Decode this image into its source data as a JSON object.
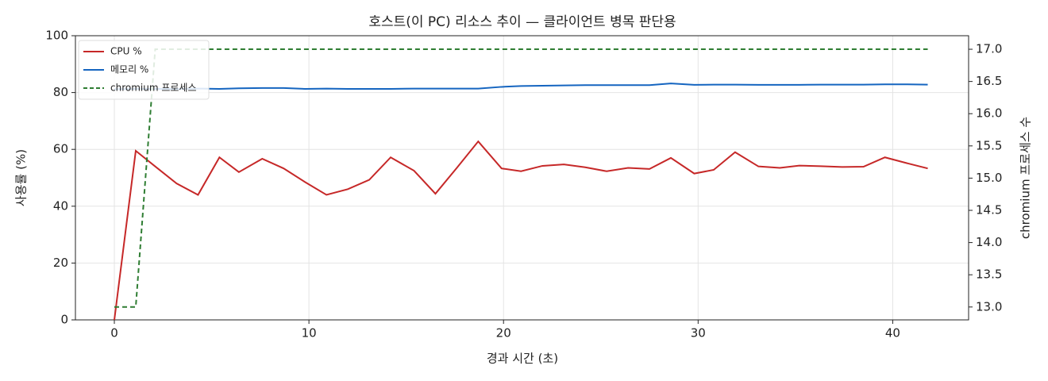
{
  "chart_data": {
    "type": "line",
    "title": "호스트(이 PC) 리소스 추이 — 클라이언트 병목 판단용",
    "xlabel": "경과 시간 (초)",
    "ylabel": "사용률 (%)",
    "y2label": "chromium 프로세스 수",
    "x": [
      0,
      1.1,
      2.1,
      3.2,
      4.3,
      5.4,
      6.4,
      7.6,
      8.7,
      9.8,
      10.9,
      12.0,
      13.1,
      14.2,
      15.4,
      16.5,
      17.6,
      18.7,
      19.9,
      20.9,
      22.0,
      23.1,
      24.2,
      25.3,
      26.4,
      27.5,
      28.6,
      29.8,
      30.8,
      31.9,
      33.1,
      34.2,
      35.2,
      36.3,
      37.4,
      38.5,
      39.6,
      40.7,
      41.8
    ],
    "series": [
      {
        "name": "CPU %",
        "color": "#c62828",
        "axis": "y",
        "linestyle": "solid",
        "values": [
          0,
          59.5,
          54,
          48,
          44,
          57.2,
          52,
          56.7,
          53.3,
          48.5,
          44,
          46,
          49.3,
          57.2,
          52.5,
          44.4,
          53.5,
          62.8,
          53.3,
          52.3,
          54.2,
          54.7,
          53.7,
          52.3,
          53.5,
          53.1,
          57,
          51.5,
          52.8,
          59,
          54,
          53.5,
          54.3,
          54.1,
          53.8,
          53.9,
          57.2,
          55.2,
          53.3
        ]
      },
      {
        "name": "메모리 %",
        "color": "#1565c0",
        "axis": "y",
        "linestyle": "solid",
        "values": [
          81.2,
          81.3,
          81.3,
          81.3,
          81.4,
          81.3,
          81.5,
          81.6,
          81.6,
          81.3,
          81.4,
          81.3,
          81.3,
          81.3,
          81.4,
          81.4,
          81.4,
          81.4,
          82.0,
          82.3,
          82.4,
          82.5,
          82.6,
          82.6,
          82.6,
          82.6,
          83.2,
          82.7,
          82.8,
          82.8,
          82.7,
          82.7,
          82.7,
          82.8,
          82.8,
          82.8,
          82.9,
          82.9,
          82.8
        ]
      },
      {
        "name": "chromium 프로세스",
        "color": "#2e7d32",
        "axis": "y2",
        "linestyle": "dashed",
        "values": [
          13,
          13,
          17,
          17,
          17,
          17,
          17,
          17,
          17,
          17,
          17,
          17,
          17,
          17,
          17,
          17,
          17,
          17,
          17,
          17,
          17,
          17,
          17,
          17,
          17,
          17,
          17,
          17,
          17,
          17,
          17,
          17,
          17,
          17,
          17,
          17,
          17,
          17,
          17
        ]
      }
    ],
    "xlim": [
      -2.0,
      43.9
    ],
    "xticks": [
      0,
      10,
      20,
      30,
      40
    ],
    "ylim": [
      0,
      100
    ],
    "yticks": [
      0,
      20,
      40,
      60,
      80,
      100
    ],
    "y2lim": [
      12.8,
      17.21
    ],
    "y2ticks": [
      {
        "value": 13,
        "label": "13.0"
      },
      13.5,
      {
        "value": 14,
        "label": "14.0"
      },
      14.5,
      {
        "value": 15,
        "label": "15.0"
      },
      15.5,
      {
        "value": 16,
        "label": "16.0"
      },
      16.5,
      {
        "value": 17,
        "label": "17.0"
      }
    ],
    "grid": true,
    "legend": "upper-left"
  }
}
